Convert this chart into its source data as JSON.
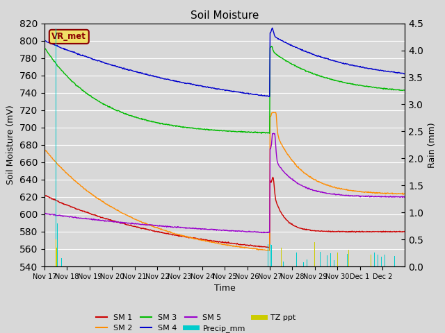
{
  "title": "Soil Moisture",
  "xlabel": "Time",
  "ylabel_left": "Soil Moisture (mV)",
  "ylabel_right": "Rain (mm)",
  "ylim_left": [
    540,
    820
  ],
  "ylim_right": [
    0.0,
    4.5
  ],
  "bg_color": "#d8d8d8",
  "annotation_label": "VR_met",
  "annotation_color": "#8b0000",
  "annotation_bg": "#f0e068",
  "sm1_color": "#cc0000",
  "sm2_color": "#ff8c00",
  "sm3_color": "#00bb00",
  "sm4_color": "#0000cc",
  "sm5_color": "#9900cc",
  "precip_color": "#00cccc",
  "tz_color": "#cccc00",
  "xtick_labels": [
    "Nov 17",
    "Nov 18",
    "Nov 19",
    "Nov 20",
    "Nov 21",
    "Nov 22",
    "Nov 23",
    "Nov 24",
    "Nov 25",
    "Nov 26",
    "Nov 27",
    "Nov 28",
    "Nov 29",
    "Nov 30",
    "Dec 1",
    "Dec 2"
  ],
  "legend_items": [
    "SM 1",
    "SM 2",
    "SM 3",
    "SM 4",
    "SM 5",
    "Precip_mm",
    "TZ ppt"
  ]
}
